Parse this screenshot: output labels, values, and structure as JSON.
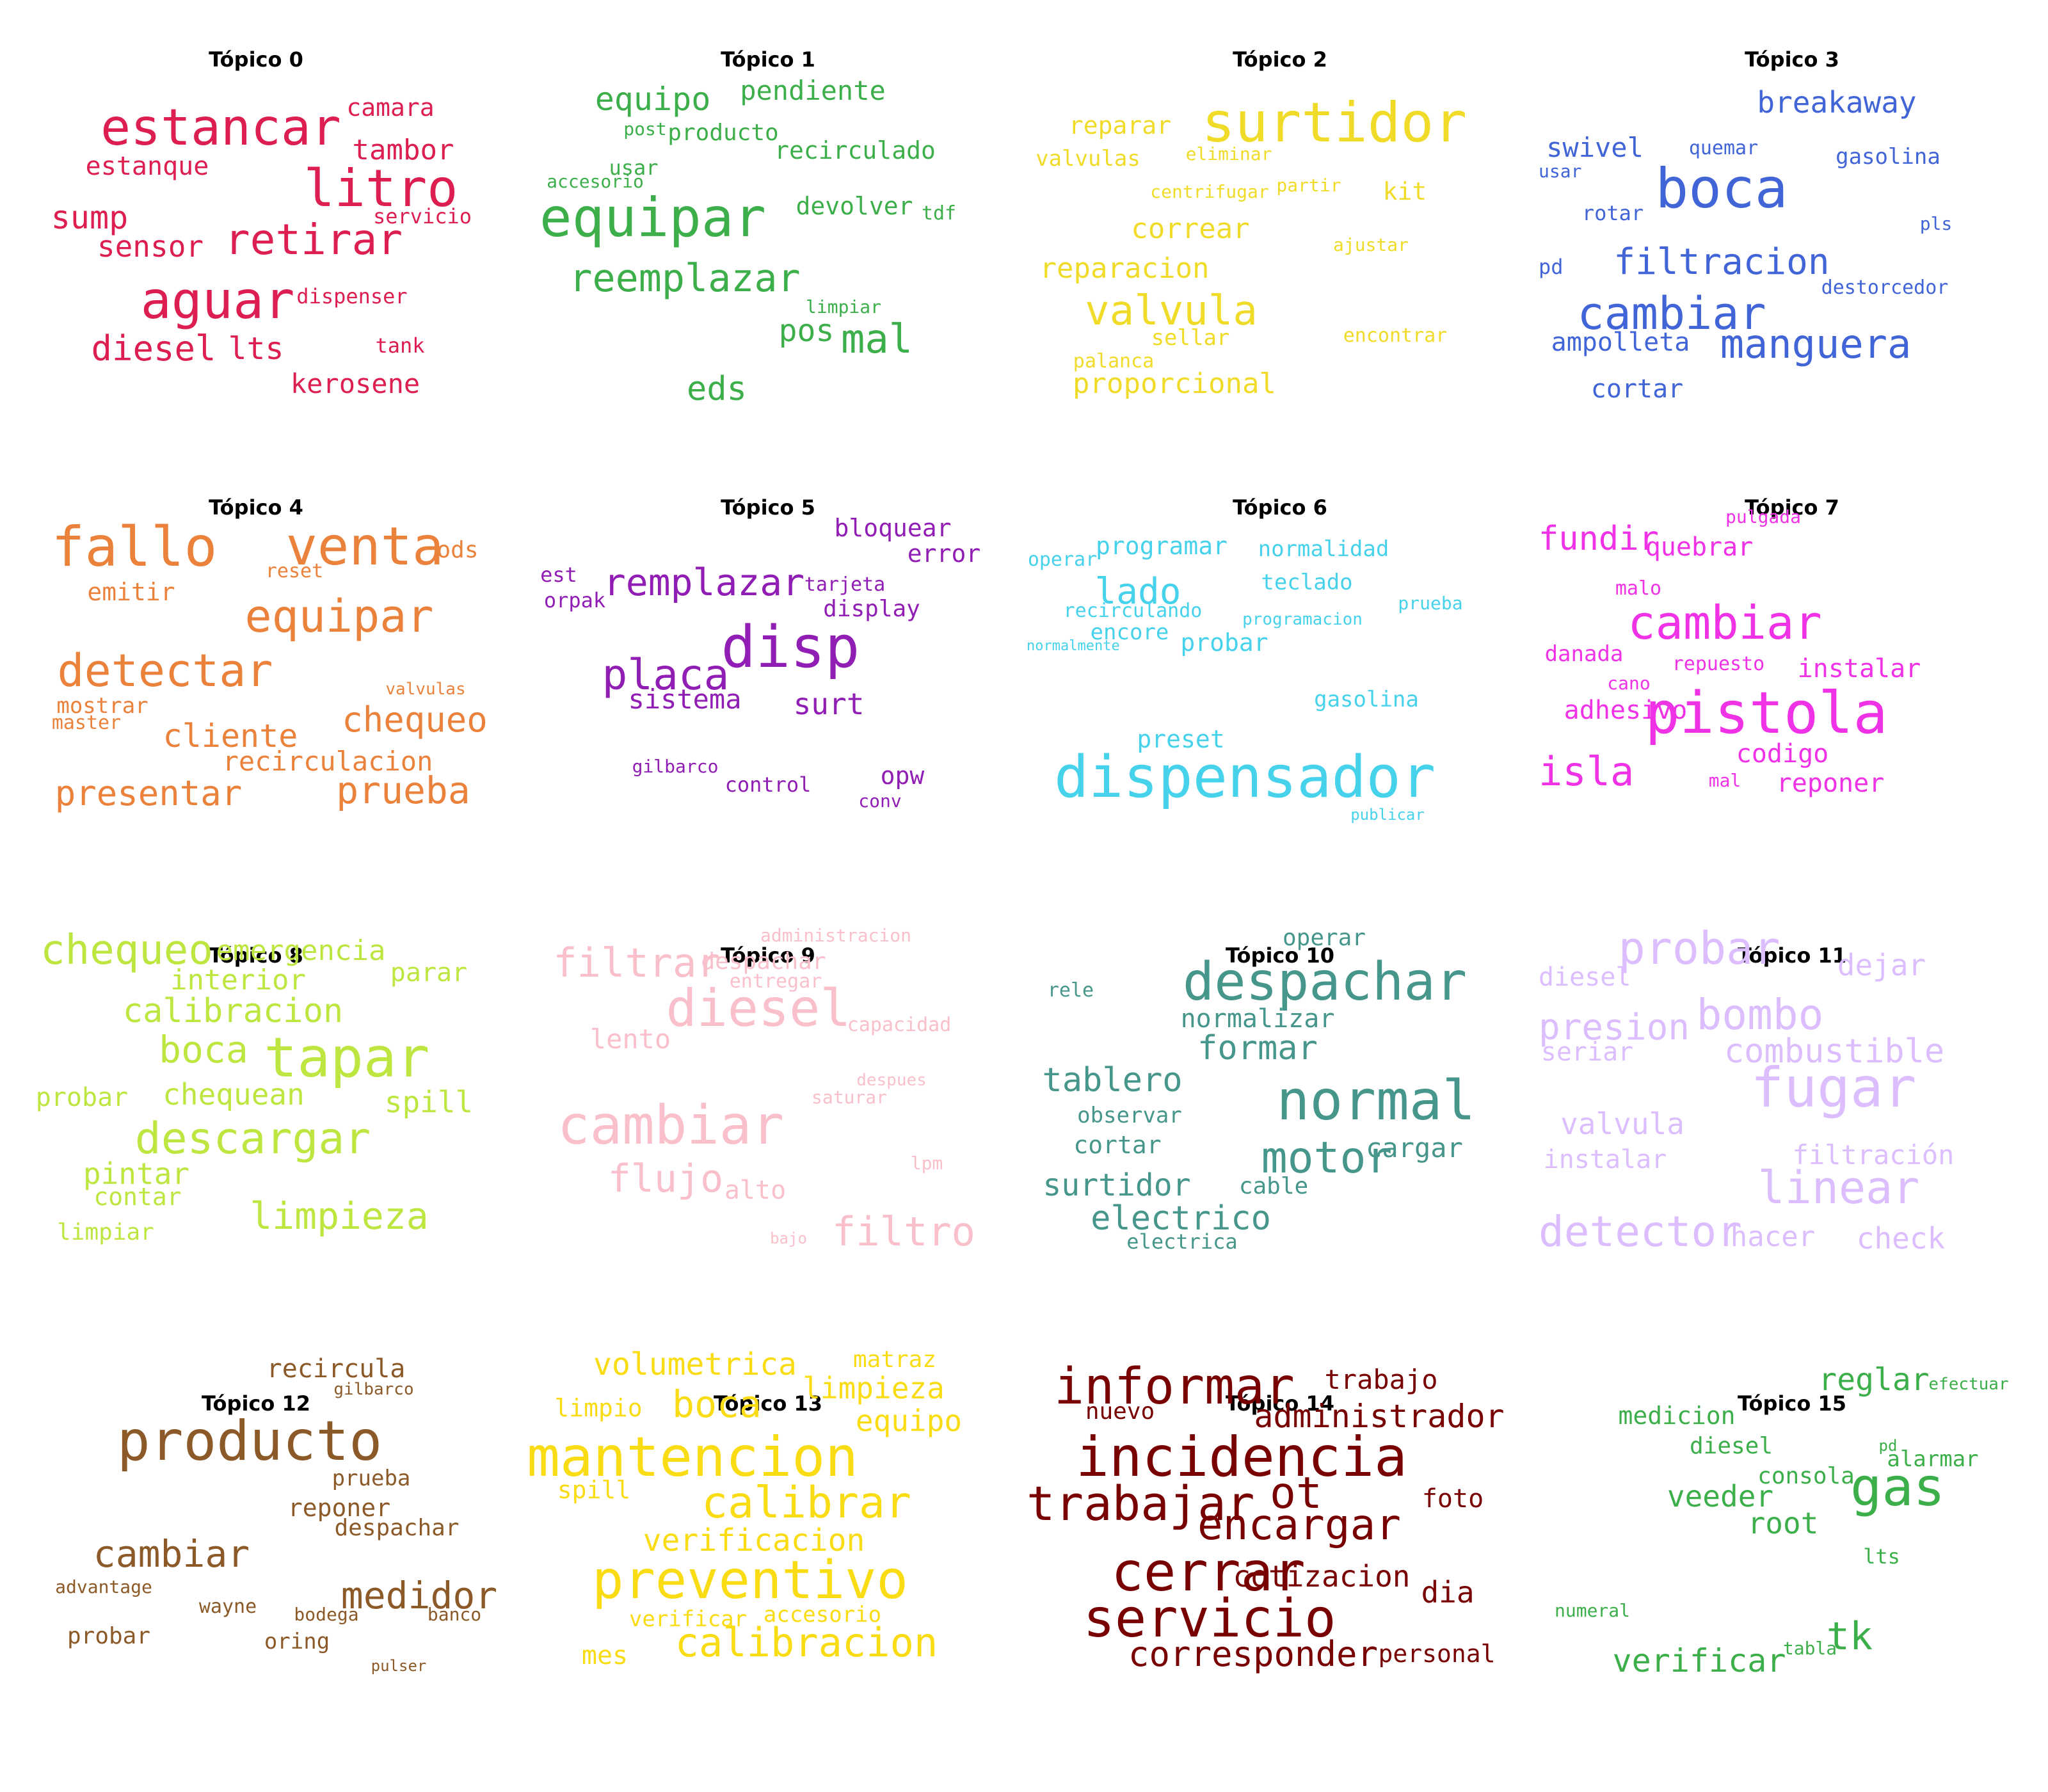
{
  "topics": [
    {
      "title": "Tópico 0",
      "color": "#dc1e50",
      "words": [
        "estancar",
        "litro",
        "aguar",
        "retirar",
        "diesel",
        "lts",
        "sump",
        "sensor",
        "tambor",
        "estanque",
        "camara",
        "kerosene",
        "servicio",
        "dispenser",
        "tank"
      ]
    },
    {
      "title": "Tópico 1",
      "color": "#3caf4b",
      "words": [
        "equipar",
        "reemplazar",
        "mal",
        "eds",
        "pos",
        "equipo",
        "pendiente",
        "producto",
        "recirculado",
        "devolver",
        "post",
        "usar",
        "accesorio",
        "tdf",
        "limpiar"
      ]
    },
    {
      "title": "Tópico 2",
      "color": "#f0dc28",
      "words": [
        "surtidor",
        "valvula",
        "proporcional",
        "reparacion",
        "correar",
        "reparar",
        "valvulas",
        "kit",
        "eliminar",
        "centrifugar",
        "partir",
        "ajustar",
        "sellar",
        "palanca",
        "encontrar"
      ]
    },
    {
      "title": "Tópico 3",
      "color": "#4164d7",
      "words": [
        "boca",
        "cambiar",
        "manguera",
        "filtracion",
        "breakaway",
        "swivel",
        "ampolleta",
        "cortar",
        "gasolina",
        "rotar",
        "quemar",
        "usar",
        "pd",
        "destorcedor",
        "pls"
      ]
    },
    {
      "title": "Tópico 4",
      "color": "#eb823c",
      "words": [
        "fallo",
        "venta",
        "equipar",
        "detectar",
        "chequeo",
        "prueba",
        "presentar",
        "cliente",
        "recirculacion",
        "emitir",
        "ods",
        "reset",
        "mostrar",
        "master",
        "valvulas"
      ]
    },
    {
      "title": "Tópico 5",
      "color": "#911eb4",
      "words": [
        "disp",
        "placa",
        "remplazar",
        "sistema",
        "surt",
        "bloquear",
        "error",
        "display",
        "tarjeta",
        "est",
        "orpak",
        "opw",
        "control",
        "gilbarco",
        "conv"
      ]
    },
    {
      "title": "Tópico 6",
      "color": "#46d2eb",
      "words": [
        "dispensador",
        "lado",
        "programar",
        "normalidad",
        "teclado",
        "probar",
        "encore",
        "preset",
        "gasolina",
        "operar",
        "recirculando",
        "programacion",
        "prueba",
        "normalmente",
        "publicar"
      ]
    },
    {
      "title": "Tópico 7",
      "color": "#f032e6",
      "words": [
        "pistola",
        "cambiar",
        "isla",
        "fundir",
        "quebrar",
        "instalar",
        "adhesivo",
        "codigo",
        "reponer",
        "danada",
        "repuesto",
        "malo",
        "cano",
        "pulgada",
        "mal"
      ]
    },
    {
      "title": "Tópico 8",
      "color": "#bee641",
      "words": [
        "tapar",
        "descargar",
        "chequeo",
        "boca",
        "calibracion",
        "limpieza",
        "emergencia",
        "interior",
        "chequean",
        "spill",
        "pintar",
        "contar",
        "parar",
        "probar",
        "limpiar"
      ]
    },
    {
      "title": "Tópico 9",
      "color": "#f9c0cb",
      "words": [
        "cambiar",
        "diesel",
        "filtrar",
        "filtro",
        "flujo",
        "lento",
        "alto",
        "despachar",
        "entregar",
        "administracion",
        "capacidad",
        "despues",
        "saturar",
        "lpm",
        "bajo"
      ]
    },
    {
      "title": "Tópico 10",
      "color": "#46968c",
      "words": [
        "despachar",
        "normal",
        "motor",
        "formar",
        "tablero",
        "surtidor",
        "electrico",
        "normalizar",
        "cargar",
        "observar",
        "cortar",
        "cable",
        "operar",
        "rele",
        "electrica"
      ]
    },
    {
      "title": "Tópico 11",
      "color": "#dcbeff",
      "words": [
        "fugar",
        "probar",
        "bombo",
        "detector",
        "linear",
        "presion",
        "combustible",
        "valvula",
        "dejar",
        "diesel",
        "seriar",
        "instalar",
        "filtración",
        "hacer",
        "check"
      ]
    },
    {
      "title": "Tópico 12",
      "color": "#8c5a28",
      "words": [
        "producto",
        "cambiar",
        "medidor",
        "recircula",
        "reponer",
        "despachar",
        "prueba",
        "probar",
        "advantage",
        "wayne",
        "bodega",
        "banco",
        "oring",
        "gilbarco",
        "pulser"
      ]
    },
    {
      "title": "Tópico 13",
      "color": "#fadc14",
      "words": [
        "mantencion",
        "preventivo",
        "calibrar",
        "calibracion",
        "boca",
        "volumetrica",
        "limpieza",
        "verificacion",
        "equipo",
        "limpio",
        "spill",
        "matraz",
        "mes",
        "verificar",
        "accesorio"
      ]
    },
    {
      "title": "Tópico 14",
      "color": "#780000",
      "words": [
        "incidencia",
        "servicio",
        "cerrar",
        "trabajar",
        "informar",
        "encargar",
        "ot",
        "corresponder",
        "administrador",
        "cotizacion",
        "trabajo",
        "nuevo",
        "dia",
        "foto",
        "personal"
      ]
    },
    {
      "title": "Tópico 15",
      "color": "#3caf4b",
      "words": [
        "gas",
        "tk",
        "verificar",
        "veeder",
        "reglar",
        "root",
        "medicion",
        "diesel",
        "consola",
        "alarmar",
        "lts",
        "efectuar",
        "pd",
        "numeral",
        "tabla"
      ]
    }
  ]
}
